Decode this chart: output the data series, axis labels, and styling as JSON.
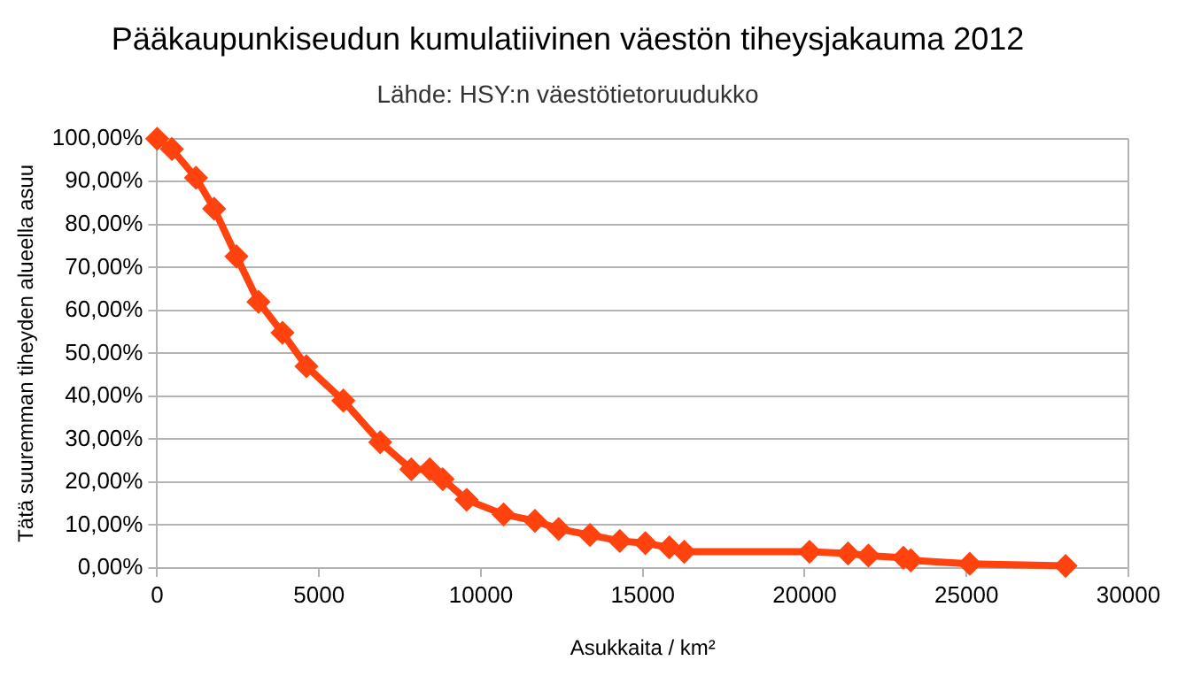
{
  "chart_data": {
    "type": "line",
    "title": "Pääkaupunkiseudun kumulatiivinen väestön tiheysjakauma 2012",
    "subtitle": "Lähde: HSY:n väestötietoruudukko",
    "xlabel": "Asukkaita / km²",
    "ylabel": "Tätä suuremman tiheyden alueella asuu",
    "series": [
      {
        "color": "#ff420e",
        "x": [
          0,
          455,
          1200,
          1760,
          2450,
          3130,
          3870,
          4610,
          5750,
          6890,
          7850,
          8420,
          8820,
          9560,
          10700,
          11670,
          12400,
          13370,
          14290,
          15080,
          15820,
          16280,
          20150,
          21340,
          21970,
          23050,
          23280,
          25100,
          28060
        ],
        "values": [
          100,
          97.6,
          90.9,
          83.7,
          72.6,
          62,
          54.8,
          47,
          39,
          29.3,
          23,
          23,
          20.7,
          15.9,
          12.5,
          11,
          9.1,
          7.7,
          6.3,
          5.8,
          4.8,
          3.8,
          3.8,
          3.4,
          2.9,
          2.4,
          1.8,
          1,
          0.5
        ]
      }
    ],
    "xlim": [
      0,
      30000
    ],
    "xticks": [
      0,
      5000,
      10000,
      15000,
      20000,
      25000,
      30000
    ],
    "ylim": [
      0,
      100
    ],
    "yticks": [
      {
        "value": 0,
        "label": "0,00%"
      },
      {
        "value": 10,
        "label": "10,00%"
      },
      {
        "value": 20,
        "label": "20,00%"
      },
      {
        "value": 30,
        "label": "30,00%"
      },
      {
        "value": 40,
        "label": "40,00%"
      },
      {
        "value": 50,
        "label": "50,00%"
      },
      {
        "value": 60,
        "label": "60,00%"
      },
      {
        "value": 70,
        "label": "70,00%"
      },
      {
        "value": 80,
        "label": "80,00%"
      },
      {
        "value": 90,
        "label": "90,00%"
      },
      {
        "value": 100,
        "label": "100,00%"
      }
    ],
    "grid": "y",
    "legend": false,
    "marker": "diamond",
    "line_style": "solid"
  }
}
